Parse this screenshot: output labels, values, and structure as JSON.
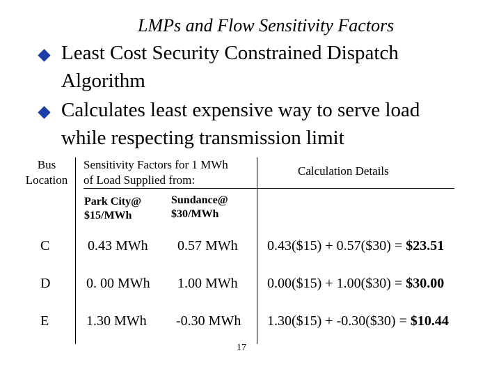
{
  "slide": {
    "title": "LMPs and Flow Sensitivity Factors",
    "bullets": [
      {
        "line1": "Least Cost Security Constrained Dispatch",
        "line2": "Algorithm"
      },
      {
        "line1": "Calculates least expensive way to serve load",
        "line2": "while respecting transmission limit"
      }
    ],
    "accent_color": "#1f3fa8"
  },
  "table": {
    "header_bus_line1": "Bus",
    "header_bus_line2": "Location",
    "header_sens_line1": "Sensitivity Factors for 1 MWh",
    "header_sens_line2": "of Load Supplied from:",
    "header_calc": "Calculation Details",
    "sub_park_line1": "Park City@",
    "sub_park_line2": "$15/MWh",
    "sub_sund_line1": "Sundance@",
    "sub_sund_line2": "$30/MWh",
    "rows": [
      {
        "bus": "C",
        "park": "0.43 MWh",
        "sund": "0.57 MWh",
        "calc_prefix": "0.43($15) + 0.57($30) = ",
        "calc_result": "$23.51"
      },
      {
        "bus": "D",
        "park": "0. 00 MWh",
        "sund": "1.00 MWh",
        "calc_prefix": "0.00($15) + 1.00($30) = ",
        "calc_result": "$30.00"
      },
      {
        "bus": "E",
        "park": "1.30 MWh",
        "sund": "-0.30 MWh",
        "calc_prefix": "1.30($15) + -0.30($30) = ",
        "calc_result": "$10.44"
      }
    ]
  },
  "page_number": "17"
}
